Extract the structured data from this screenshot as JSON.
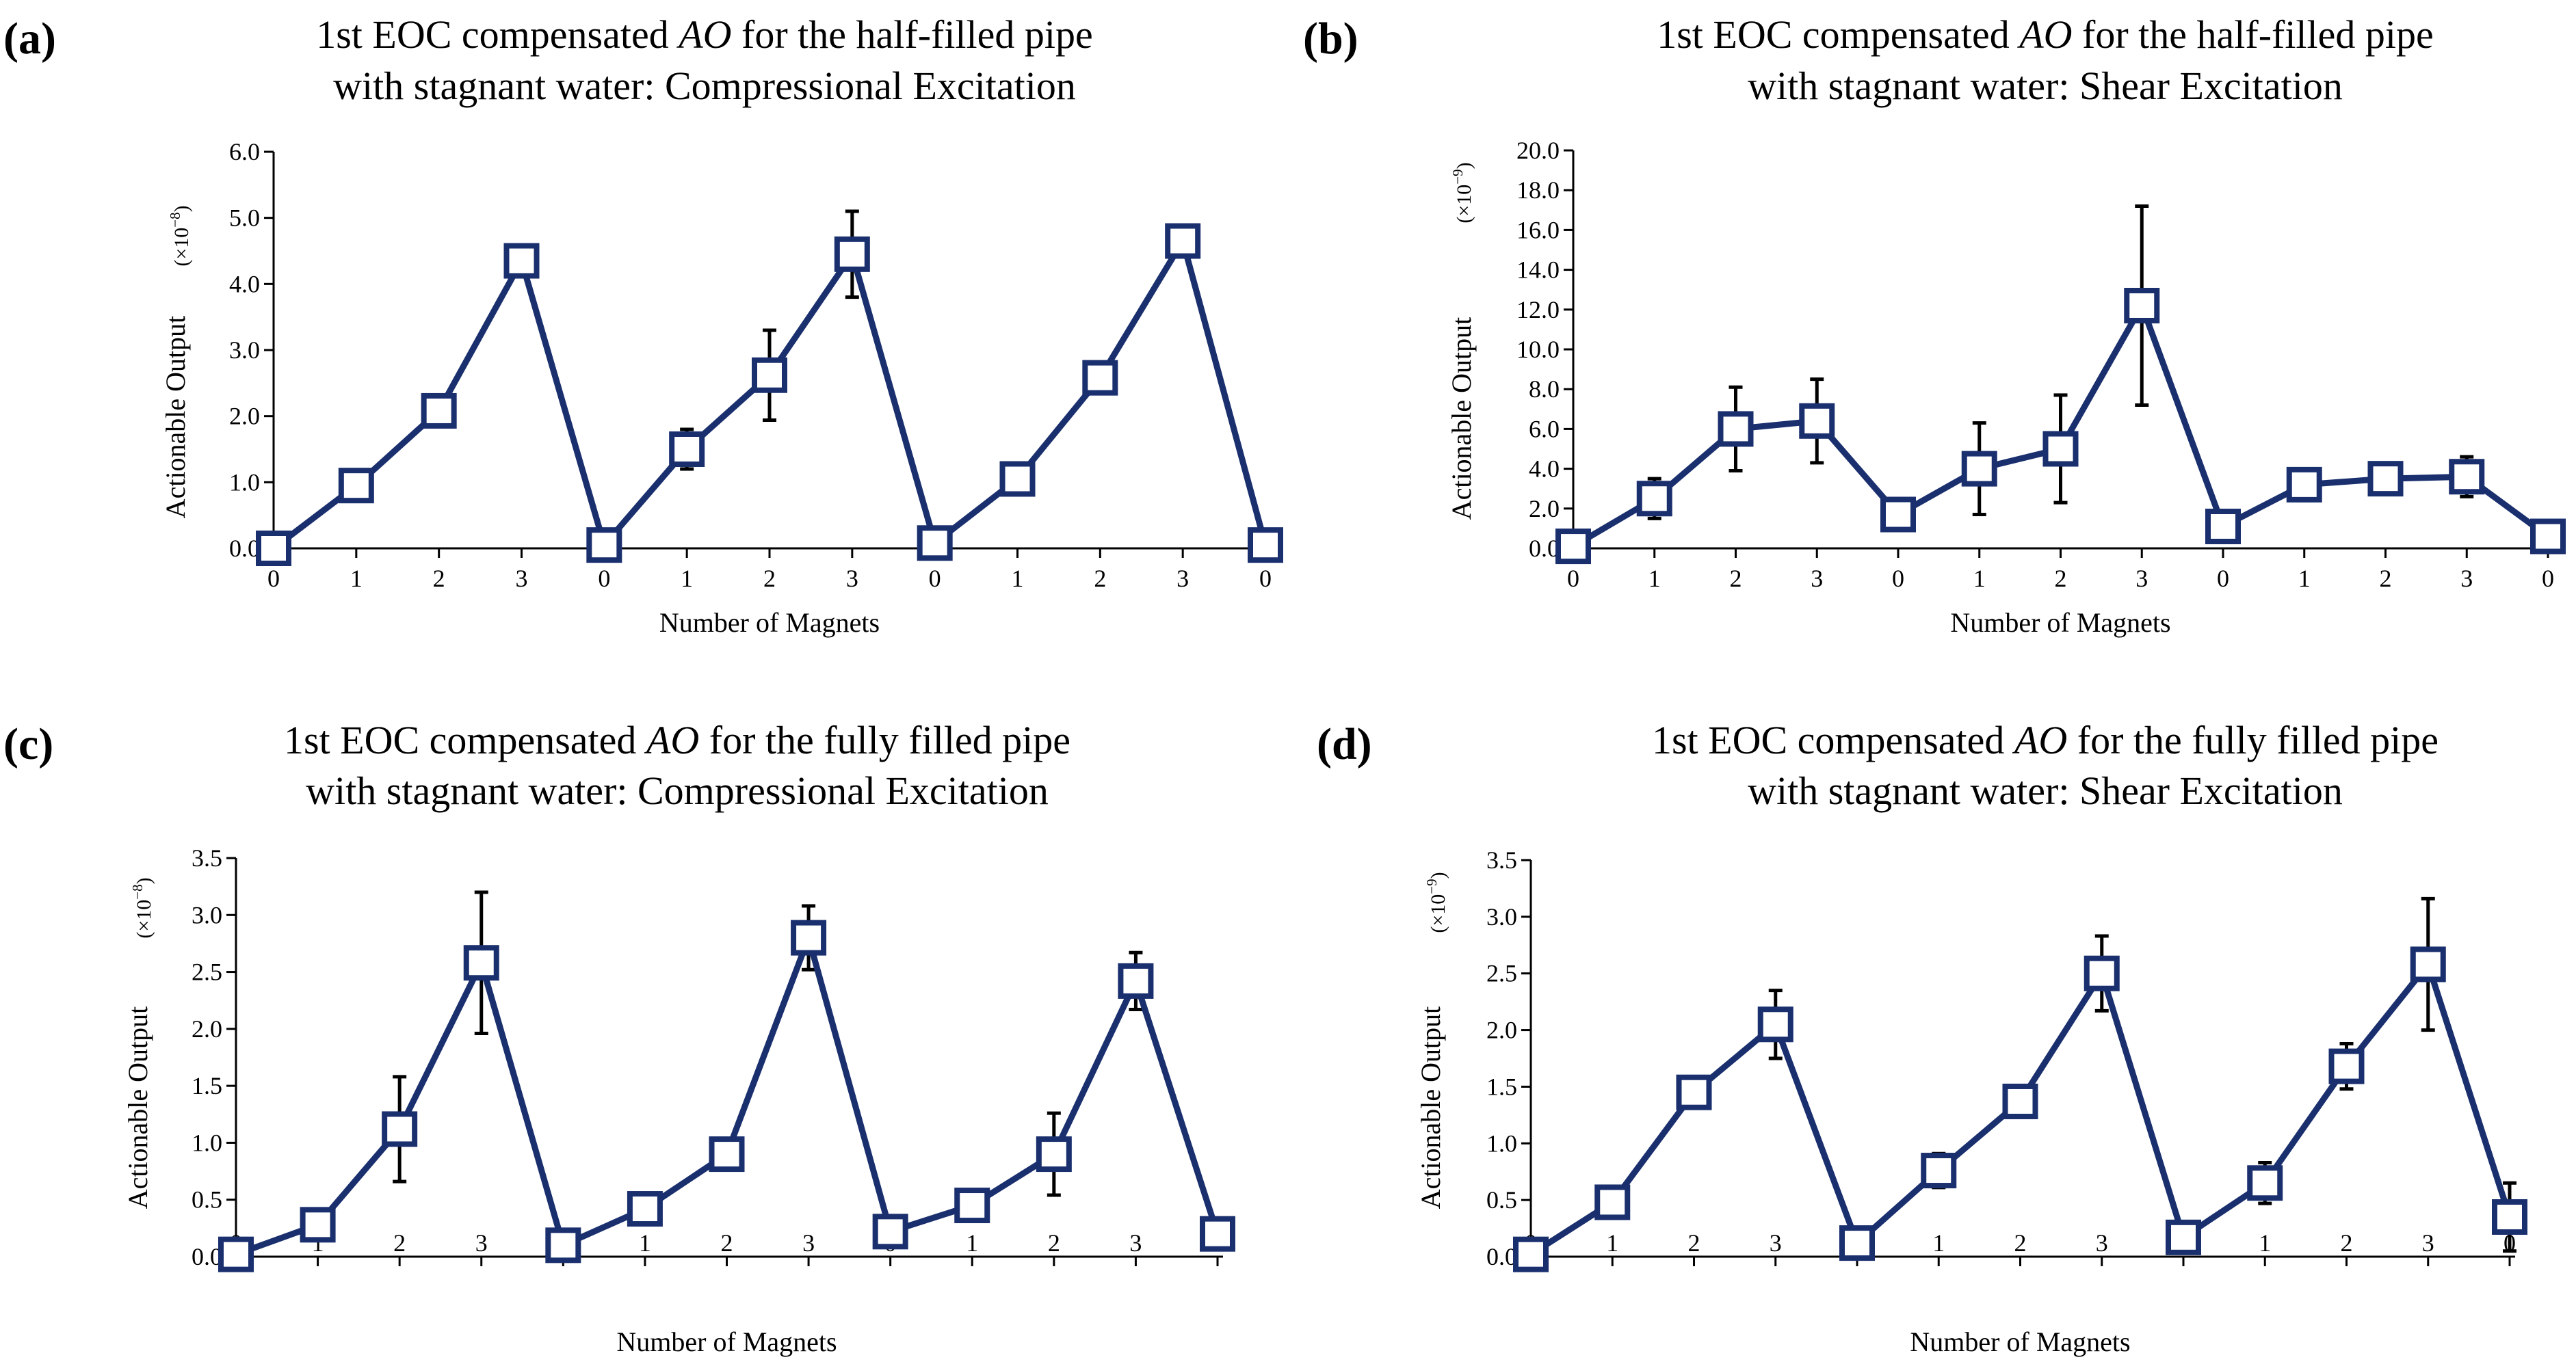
{
  "colors": {
    "series": "#1a2f6e",
    "error_bars": "#000000",
    "axes": "#000000",
    "background": "#ffffff"
  },
  "chart_data": [
    {
      "panel": "(a)",
      "type": "line",
      "title_lines": [
        [
          {
            "text": "1st EOC compensated "
          },
          {
            "text": "AO",
            "italic": true
          },
          {
            "text": " for the half-filled pipe"
          }
        ],
        [
          {
            "text": "with stagnant water: Compressional Excitation"
          }
        ]
      ],
      "xlabel": "Number of Magnets",
      "ylabel": "Actionable Output",
      "multiplier": {
        "base": "(×10",
        "exp": "−8",
        "close": ")"
      },
      "categories": [
        "0",
        "1",
        "2",
        "3",
        "0",
        "1",
        "2",
        "3",
        "0",
        "1",
        "2",
        "3",
        "0"
      ],
      "values": [
        0.0,
        0.95,
        2.08,
        4.35,
        0.05,
        1.5,
        2.62,
        4.45,
        0.08,
        1.05,
        2.58,
        4.65,
        0.05
      ],
      "errors": [
        0,
        0.05,
        0.05,
        0.05,
        0,
        0.3,
        0.68,
        0.65,
        0,
        0.05,
        0.05,
        0.05,
        0
      ],
      "ylim": [
        0,
        6
      ],
      "yticks": [
        "0.0",
        "1.0",
        "2.0",
        "3.0",
        "4.0",
        "5.0",
        "6.0"
      ]
    },
    {
      "panel": "(b)",
      "type": "line",
      "title_lines": [
        [
          {
            "text": "1st EOC compensated "
          },
          {
            "text": "AO",
            "italic": true
          },
          {
            "text": " for the half-filled pipe"
          }
        ],
        [
          {
            "text": "with stagnant water: Shear Excitation"
          }
        ]
      ],
      "xlabel": "Number of Magnets",
      "ylabel": "Actionable Output",
      "multiplier": {
        "base": "(×10",
        "exp": "−9",
        "close": ")"
      },
      "categories": [
        "0",
        "1",
        "2",
        "3",
        "0",
        "1",
        "2",
        "3",
        "0",
        "1",
        "2",
        "3",
        "0"
      ],
      "values": [
        0.1,
        2.5,
        6.0,
        6.4,
        1.7,
        4.0,
        5.0,
        12.2,
        1.1,
        3.2,
        3.5,
        3.6,
        0.6
      ],
      "errors": [
        0,
        1.0,
        2.1,
        2.1,
        0,
        2.3,
        2.7,
        5.0,
        0,
        0.8,
        0.5,
        1.0,
        0
      ],
      "ylim": [
        0,
        20
      ],
      "yticks": [
        "0.0",
        "2.0",
        "4.0",
        "6.0",
        "8.0",
        "10.0",
        "12.0",
        "14.0",
        "16.0",
        "18.0",
        "20.0"
      ]
    },
    {
      "panel": "(c)",
      "type": "line",
      "title_lines": [
        [
          {
            "text": "1st EOC compensated "
          },
          {
            "text": "AO",
            "italic": true
          },
          {
            "text": " for the fully filled pipe"
          }
        ],
        [
          {
            "text": "with stagnant water: Compressional Excitation"
          }
        ]
      ],
      "xlabel": "Number of Magnets",
      "ylabel": "Actionable Output",
      "multiplier": {
        "base": "(×10",
        "exp": "−8",
        "close": ")"
      },
      "categories": [
        "0",
        "1",
        "2",
        "3",
        "0",
        "1",
        "2",
        "3",
        "0",
        "1",
        "2",
        "3",
        "0"
      ],
      "values": [
        0.02,
        0.28,
        1.12,
        2.58,
        0.1,
        0.42,
        0.9,
        2.8,
        0.22,
        0.45,
        0.9,
        2.42,
        0.2
      ],
      "errors": [
        0,
        0.03,
        0.46,
        0.62,
        0.05,
        0.06,
        0.03,
        0.28,
        0.08,
        0.03,
        0.36,
        0.25,
        0.05
      ],
      "ylim": [
        0,
        3.5
      ],
      "yticks": [
        "0.0",
        "0.5",
        "1.0",
        "1.5",
        "2.0",
        "2.5",
        "3.0",
        "3.5"
      ]
    },
    {
      "panel": "(d)",
      "type": "line",
      "title_lines": [
        [
          {
            "text": "1st EOC compensated "
          },
          {
            "text": "AO",
            "italic": true
          },
          {
            "text": " for the fully filled pipe"
          }
        ],
        [
          {
            "text": "with stagnant water: Shear Excitation"
          }
        ]
      ],
      "xlabel": "Number of Magnets",
      "ylabel": "Actionable Output",
      "multiplier": {
        "base": "(×10",
        "exp": "−9",
        "close": ")"
      },
      "categories": [
        "0",
        "1",
        "2",
        "3",
        "0",
        "1",
        "2",
        "3",
        "0",
        "1",
        "2",
        "3",
        "0"
      ],
      "values": [
        0.02,
        0.48,
        1.45,
        2.05,
        0.12,
        0.76,
        1.37,
        2.5,
        0.17,
        0.65,
        1.68,
        2.58,
        0.35
      ],
      "errors": [
        0,
        0.04,
        0.04,
        0.3,
        0,
        0.15,
        0.04,
        0.33,
        0.06,
        0.18,
        0.2,
        0.58,
        0.3
      ],
      "ylim": [
        0,
        3.5
      ],
      "yticks": [
        "0.0",
        "0.5",
        "1.0",
        "1.5",
        "2.0",
        "2.5",
        "3.0",
        "3.5"
      ]
    }
  ]
}
